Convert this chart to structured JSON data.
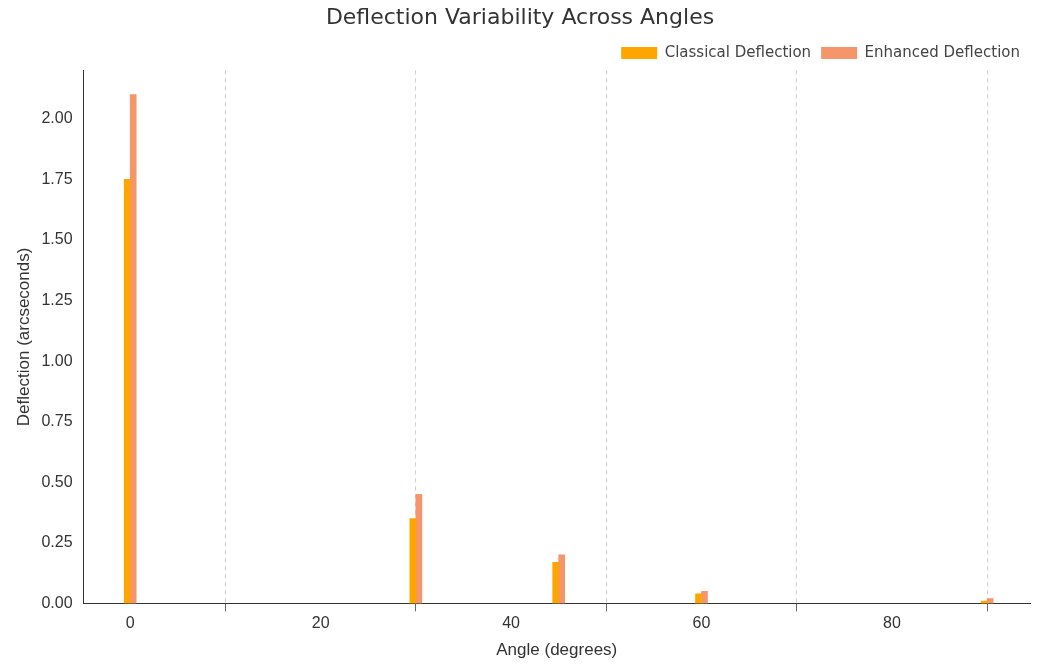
{
  "chart_data": {
    "type": "bar",
    "title": "Deflection Variability Across Angles",
    "xlabel": "Angle (degrees)",
    "ylabel": "Deflection (arcseconds)",
    "x": [
      0,
      30,
      45,
      60,
      90
    ],
    "series": [
      {
        "name": "Classical Deflection",
        "color": "#ffa500",
        "values": [
          1.75,
          0.35,
          0.17,
          0.04,
          0.01
        ]
      },
      {
        "name": "Enhanced Deflection",
        "color": "#f4956a",
        "values": [
          2.1,
          0.45,
          0.2,
          0.05,
          0.02
        ]
      }
    ],
    "xlim": [
      -4.9,
      94.5
    ],
    "xticks": [
      0,
      20,
      40,
      60,
      80
    ],
    "ylim": [
      0,
      2.2
    ],
    "yticks": [
      {
        "value": 0,
        "label": "0.00"
      },
      {
        "value": 0.25,
        "label": "0.25"
      },
      {
        "value": 0.5,
        "label": "0.50"
      },
      {
        "value": 0.75,
        "label": "0.75"
      },
      {
        "value": 1,
        "label": "1.00"
      },
      {
        "value": 1.25,
        "label": "1.25"
      },
      {
        "value": 1.5,
        "label": "1.50"
      },
      {
        "value": 1.75,
        "label": "1.75"
      },
      {
        "value": 2,
        "label": "2.00"
      }
    ],
    "grid": "x",
    "line_style": "dashed",
    "legend": "top right"
  }
}
